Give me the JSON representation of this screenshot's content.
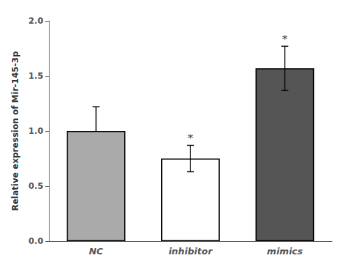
{
  "chart_data": {
    "type": "bar",
    "categories": [
      "NC",
      "inhibitor",
      "mimics"
    ],
    "values": [
      1.0,
      0.75,
      1.57
    ],
    "colors": [
      "#aaaaaa",
      "#ffffff",
      "#555555"
    ],
    "errors_up": [
      0.22,
      0.12,
      0.2
    ],
    "errors_down": [
      0,
      0.12,
      0.2
    ],
    "annotations": [
      {
        "x": "inhibitor",
        "text": "*"
      },
      {
        "x": "mimics",
        "text": "*"
      }
    ],
    "ylabel": "Relative expression of Mir-145-3p",
    "ylim": [
      0,
      2.0
    ],
    "yticks": [
      {
        "value": 0,
        "label": "0.0"
      },
      {
        "value": 0.5,
        "label": "0.5"
      },
      {
        "value": 1.0,
        "label": "1.0"
      },
      {
        "value": 1.5,
        "label": "1.5"
      },
      {
        "value": 2.0,
        "label": "2.0"
      }
    ],
    "grid": false
  }
}
